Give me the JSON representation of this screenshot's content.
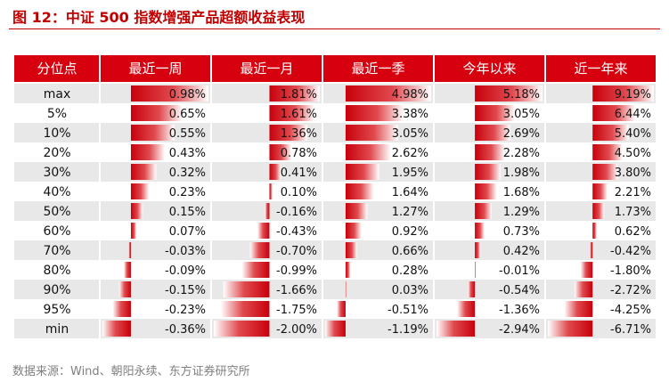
{
  "title": "图 12：中证 500 指数增强产品超额收益表现",
  "source": "数据来源：Wind、朝阳永续、东方证券研究所",
  "colors": {
    "accent": "#c00000",
    "header_bg": "#d7000f",
    "stripe": "#e8e8e8",
    "bar_strong": "#c8000b",
    "bar_fade": "#ffffff"
  },
  "chart_data": {
    "type": "table",
    "row_header": "分位点",
    "columns": [
      "最近一周",
      "最近一月",
      "最近一季",
      "今年以来",
      "近一年来"
    ],
    "rows": [
      {
        "label": "max",
        "values": [
          0.98,
          1.81,
          4.98,
          5.18,
          9.19
        ],
        "display": [
          "0.98%",
          "1.81%",
          "4.98%",
          "5.18%",
          "9.19%"
        ]
      },
      {
        "label": "5%",
        "values": [
          0.65,
          1.61,
          3.38,
          3.05,
          6.44
        ],
        "display": [
          "0.65%",
          "1.61%",
          "3.38%",
          "3.05%",
          "6.44%"
        ]
      },
      {
        "label": "10%",
        "values": [
          0.55,
          1.36,
          3.05,
          2.69,
          5.4
        ],
        "display": [
          "0.55%",
          "1.36%",
          "3.05%",
          "2.69%",
          "5.40%"
        ]
      },
      {
        "label": "20%",
        "values": [
          0.43,
          0.78,
          2.62,
          2.28,
          4.5
        ],
        "display": [
          "0.43%",
          "0.78%",
          "2.62%",
          "2.28%",
          "4.50%"
        ]
      },
      {
        "label": "30%",
        "values": [
          0.32,
          0.41,
          1.95,
          1.98,
          3.8
        ],
        "display": [
          "0.32%",
          "0.41%",
          "1.95%",
          "1.98%",
          "3.80%"
        ]
      },
      {
        "label": "40%",
        "values": [
          0.23,
          0.1,
          1.64,
          1.68,
          2.21
        ],
        "display": [
          "0.23%",
          "0.10%",
          "1.64%",
          "1.68%",
          "2.21%"
        ]
      },
      {
        "label": "50%",
        "values": [
          0.15,
          -0.16,
          1.27,
          1.29,
          1.73
        ],
        "display": [
          "0.15%",
          "-0.16%",
          "1.27%",
          "1.29%",
          "1.73%"
        ]
      },
      {
        "label": "60%",
        "values": [
          0.07,
          -0.43,
          0.92,
          0.73,
          0.62
        ],
        "display": [
          "0.07%",
          "-0.43%",
          "0.92%",
          "0.73%",
          "0.62%"
        ]
      },
      {
        "label": "70%",
        "values": [
          -0.03,
          -0.7,
          0.66,
          0.42,
          -0.42
        ],
        "display": [
          "-0.03%",
          "-0.70%",
          "0.66%",
          "0.42%",
          "-0.42%"
        ]
      },
      {
        "label": "80%",
        "values": [
          -0.09,
          -0.99,
          0.28,
          -0.01,
          -1.8
        ],
        "display": [
          "-0.09%",
          "-0.99%",
          "0.28%",
          "-0.01%",
          "-1.80%"
        ]
      },
      {
        "label": "90%",
        "values": [
          -0.15,
          -1.66,
          0.03,
          -0.54,
          -2.72
        ],
        "display": [
          "-0.15%",
          "-1.66%",
          "0.03%",
          "-0.54%",
          "-2.72%"
        ]
      },
      {
        "label": "95%",
        "values": [
          -0.23,
          -1.75,
          -0.51,
          -1.36,
          -4.25
        ],
        "display": [
          "-0.23%",
          "-1.75%",
          "-0.51%",
          "-1.36%",
          "-4.25%"
        ]
      },
      {
        "label": "min",
        "values": [
          -0.36,
          -2.0,
          -1.19,
          -2.94,
          -6.71
        ],
        "display": [
          "-0.36%",
          "-2.00%",
          "-1.19%",
          "-2.94%",
          "-6.71%"
        ]
      }
    ]
  }
}
